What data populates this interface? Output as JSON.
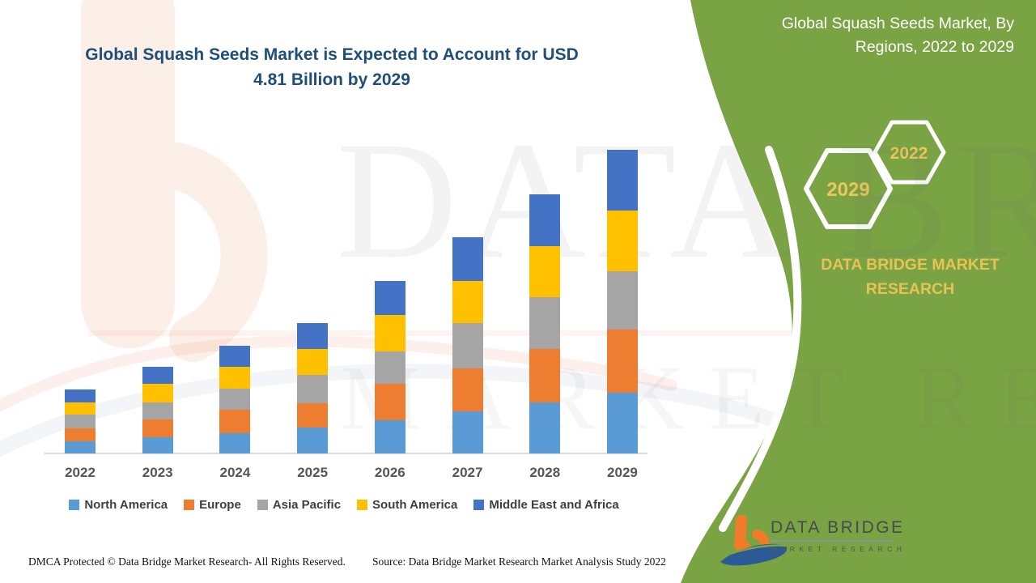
{
  "title": {
    "lines": [
      "Global Squash Seeds Market is Expected to Account for USD",
      "4.81 Billion by 2029"
    ]
  },
  "side_panel": {
    "title_lines": [
      "Global Squash Seeds Market, By",
      "Regions, 2022 to 2029"
    ],
    "hexagon_years": [
      "2029",
      "2022"
    ],
    "brand_text": "DATA BRIDGE MARKET RESEARCH",
    "panel_color": "#7AA344",
    "gold_color": "#E8C253"
  },
  "watermark": {
    "line1": "DATA BRIDGE",
    "line2": "MARKET RESEARCH"
  },
  "logo": {
    "title": "DATA BRIDGE",
    "subtitle": "MARKET RESEARCH"
  },
  "chart_data": {
    "type": "bar",
    "stacked": true,
    "title": "Global Squash Seeds Market, By Regions, 2022 to 2029",
    "unit": "USD Billion",
    "xlabel": "",
    "ylabel": "",
    "grid": false,
    "legend_position": "bottom",
    "ylim": [
      0,
      5
    ],
    "categories": [
      "2022",
      "2023",
      "2024",
      "2025",
      "2026",
      "2027",
      "2028",
      "2029"
    ],
    "totals": [
      1.01,
      1.37,
      1.71,
      2.06,
      2.73,
      3.42,
      4.1,
      4.81
    ],
    "series": [
      {
        "name": "North America",
        "color": "#5B9BD5",
        "values": [
          0.19,
          0.26,
          0.32,
          0.41,
          0.53,
          0.67,
          0.81,
          0.96
        ]
      },
      {
        "name": "Europe",
        "color": "#ED7D31",
        "values": [
          0.21,
          0.28,
          0.37,
          0.39,
          0.57,
          0.68,
          0.85,
          1.0
        ]
      },
      {
        "name": "Asia Pacific",
        "color": "#A5A5A5",
        "values": [
          0.22,
          0.27,
          0.33,
          0.44,
          0.52,
          0.71,
          0.81,
          0.92
        ]
      },
      {
        "name": "South America",
        "color": "#FFC000",
        "values": [
          0.19,
          0.29,
          0.35,
          0.41,
          0.57,
          0.67,
          0.81,
          0.96
        ]
      },
      {
        "name": "Middle East and Africa",
        "color": "#4472C4",
        "values": [
          0.2,
          0.27,
          0.34,
          0.41,
          0.54,
          0.69,
          0.82,
          0.97
        ]
      }
    ]
  },
  "footer": {
    "dmca": "DMCA Protected © Data Bridge Market Research- All Rights Reserved.",
    "source": "Source: Data Bridge Market Research Market Analysis Study 2022"
  }
}
